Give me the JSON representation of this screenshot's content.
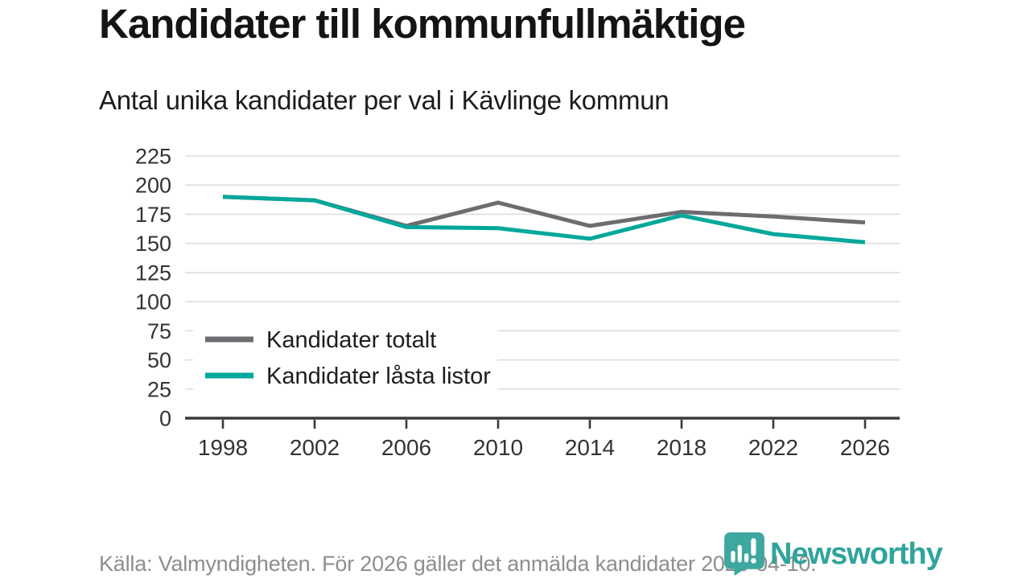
{
  "chart_data": {
    "type": "line",
    "title": "Kandidater till kommunfullmäktige",
    "subtitle": "Antal unika kandidater per val i Kävlinge kommun",
    "x": [
      "1998",
      "2002",
      "2006",
      "2010",
      "2014",
      "2018",
      "2022",
      "2026"
    ],
    "series": [
      {
        "name": "Kandidater totalt",
        "color": "#6d6d71",
        "values": [
          190,
          187,
          165,
          185,
          165,
          177,
          173,
          168
        ]
      },
      {
        "name": "Kandidater låsta listor",
        "color": "#00a79b",
        "values": [
          190,
          187,
          164,
          163,
          154,
          174,
          158,
          151
        ]
      }
    ],
    "ylim": [
      0,
      225
    ],
    "ytick_step": 25,
    "grid": true,
    "legend_position": "inside-lower-left",
    "xlabel": "",
    "ylabel": ""
  },
  "footer": {
    "source": "Källa: Valmyndigheten. För 2026 gäller det anmälda kandidater 2026-04-10.",
    "logo_text": "Newsworthy"
  },
  "colors": {
    "accent_teal": "#00a79b",
    "series_gray": "#6d6d71",
    "grid": "#dddddd",
    "axis": "#3a3a3a",
    "tick_text": "#333333",
    "text_dark": "#141414",
    "text_muted": "#8e8e8e",
    "logo_teal": "#2fa49c",
    "logo_icon_teal": "#3ea79f"
  }
}
